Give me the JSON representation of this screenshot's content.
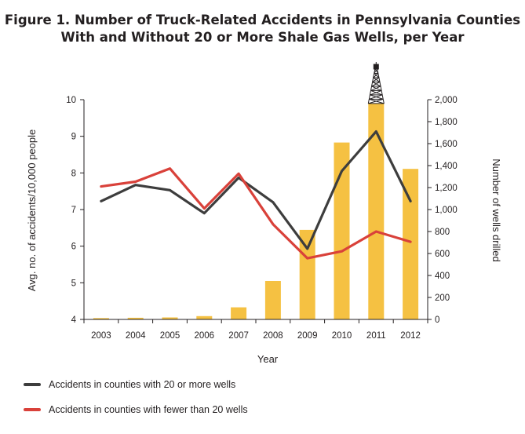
{
  "chart_data": {
    "type": "bar+line",
    "title_line1": "Figure 1. Number of Truck-Related Accidents in Pennsylvania Counties",
    "title_line2": "With and Without 20 or More Shale Gas Wells, per Year",
    "xlabel": "Year",
    "ylabel_left": "Avg. no. of accidents/10,000 people",
    "ylabel_right": "Number of wells drilled",
    "categories": [
      "2003",
      "2004",
      "2005",
      "2006",
      "2007",
      "2008",
      "2009",
      "2010",
      "2011",
      "2012"
    ],
    "ylim_left": [
      4,
      10
    ],
    "yticks_left": [
      "4",
      "5",
      "6",
      "7",
      "8",
      "9",
      "10"
    ],
    "ylim_right": [
      0,
      2000
    ],
    "yticks_right": [
      "0",
      "200",
      "400",
      "600",
      "800",
      "1,000",
      "1,200",
      "1,400",
      "1,600",
      "1,800",
      "2,000"
    ],
    "bars": {
      "axis": "right",
      "color": "#f5c142",
      "values": [
        12,
        15,
        18,
        30,
        110,
        350,
        815,
        1610,
        1965,
        1370
      ]
    },
    "series": [
      {
        "name": "Accidents in counties with 20 or more wells",
        "axis": "left",
        "color": "#3d3d3d",
        "values": [
          7.23,
          7.67,
          7.53,
          6.9,
          7.87,
          7.2,
          5.93,
          8.05,
          9.13,
          7.23
        ]
      },
      {
        "name": "Accidents in counties with fewer than 20 wells",
        "axis": "left",
        "color": "#d9413a",
        "values": [
          7.63,
          7.76,
          8.12,
          7.03,
          7.98,
          6.6,
          5.67,
          5.86,
          6.4,
          6.12
        ]
      }
    ],
    "decoration": "drilling-rig-icon above 2011 bar",
    "legend_position": "bottom-left",
    "grid": false
  }
}
